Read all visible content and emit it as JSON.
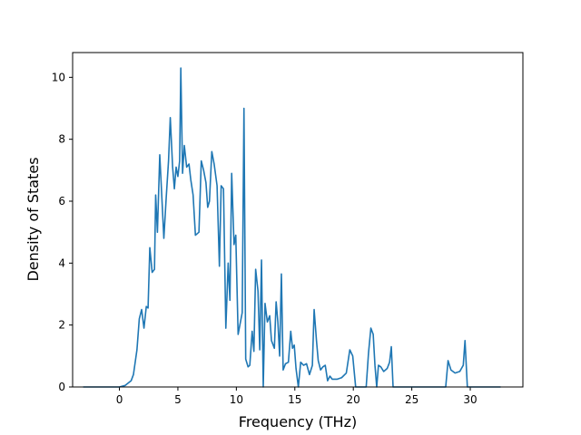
{
  "chart_data": {
    "type": "line",
    "title": "",
    "xlabel": "Frequency (THz)",
    "ylabel": "Density of States",
    "xlim": [
      -4.0,
      34.5
    ],
    "ylim": [
      0,
      10.8
    ],
    "xticks": [
      0,
      5,
      10,
      15,
      20,
      25,
      30
    ],
    "yticks": [
      0,
      2,
      4,
      6,
      8,
      10
    ],
    "grid": false,
    "legend": "none",
    "series": [
      {
        "color": "#1f77b4",
        "points": [
          [
            -3.1,
            0.0
          ],
          [
            0.0,
            0.0
          ],
          [
            0.5,
            0.05
          ],
          [
            1.0,
            0.2
          ],
          [
            1.2,
            0.4
          ],
          [
            1.5,
            1.2
          ],
          [
            1.7,
            2.2
          ],
          [
            1.9,
            2.5
          ],
          [
            2.1,
            1.9
          ],
          [
            2.3,
            2.6
          ],
          [
            2.45,
            2.55
          ],
          [
            2.6,
            4.5
          ],
          [
            2.8,
            3.7
          ],
          [
            3.0,
            3.8
          ],
          [
            3.1,
            6.2
          ],
          [
            3.25,
            5.0
          ],
          [
            3.45,
            7.5
          ],
          [
            3.8,
            4.8
          ],
          [
            4.0,
            6.1
          ],
          [
            4.2,
            7.3
          ],
          [
            4.35,
            8.7
          ],
          [
            4.55,
            7.1
          ],
          [
            4.7,
            6.4
          ],
          [
            4.85,
            7.1
          ],
          [
            5.0,
            6.8
          ],
          [
            5.15,
            7.3
          ],
          [
            5.25,
            10.3
          ],
          [
            5.4,
            6.9
          ],
          [
            5.55,
            7.8
          ],
          [
            5.75,
            7.1
          ],
          [
            5.95,
            7.2
          ],
          [
            6.1,
            6.7
          ],
          [
            6.3,
            6.2
          ],
          [
            6.5,
            4.9
          ],
          [
            6.8,
            5.0
          ],
          [
            7.0,
            7.3
          ],
          [
            7.2,
            7.0
          ],
          [
            7.4,
            6.6
          ],
          [
            7.55,
            5.8
          ],
          [
            7.7,
            6.0
          ],
          [
            7.9,
            7.6
          ],
          [
            8.1,
            7.2
          ],
          [
            8.35,
            6.5
          ],
          [
            8.55,
            3.9
          ],
          [
            8.7,
            6.5
          ],
          [
            8.9,
            6.4
          ],
          [
            9.1,
            1.9
          ],
          [
            9.3,
            4.0
          ],
          [
            9.45,
            2.8
          ],
          [
            9.6,
            6.9
          ],
          [
            9.8,
            4.6
          ],
          [
            9.95,
            4.9
          ],
          [
            10.15,
            1.7
          ],
          [
            10.5,
            2.4
          ],
          [
            10.65,
            9.0
          ],
          [
            10.8,
            0.9
          ],
          [
            11.0,
            0.65
          ],
          [
            11.15,
            0.7
          ],
          [
            11.35,
            1.8
          ],
          [
            11.5,
            1.15
          ],
          [
            11.65,
            3.8
          ],
          [
            11.85,
            3.1
          ],
          [
            12.0,
            1.2
          ],
          [
            12.15,
            4.1
          ],
          [
            12.3,
            0.0
          ],
          [
            12.45,
            2.7
          ],
          [
            12.65,
            2.1
          ],
          [
            12.85,
            2.3
          ],
          [
            13.0,
            1.5
          ],
          [
            13.25,
            1.25
          ],
          [
            13.4,
            2.75
          ],
          [
            13.55,
            2.1
          ],
          [
            13.7,
            1.0
          ],
          [
            13.85,
            3.65
          ],
          [
            14.0,
            0.55
          ],
          [
            14.2,
            0.75
          ],
          [
            14.45,
            0.8
          ],
          [
            14.65,
            1.8
          ],
          [
            14.8,
            1.25
          ],
          [
            14.95,
            1.35
          ],
          [
            15.1,
            0.6
          ],
          [
            15.3,
            0.0
          ],
          [
            15.5,
            0.8
          ],
          [
            15.75,
            0.7
          ],
          [
            16.0,
            0.75
          ],
          [
            16.25,
            0.4
          ],
          [
            16.5,
            0.7
          ],
          [
            16.65,
            2.5
          ],
          [
            16.85,
            1.5
          ],
          [
            17.0,
            0.85
          ],
          [
            17.2,
            0.55
          ],
          [
            17.4,
            0.65
          ],
          [
            17.6,
            0.7
          ],
          [
            17.8,
            0.2
          ],
          [
            18.0,
            0.35
          ],
          [
            18.2,
            0.25
          ],
          [
            18.6,
            0.25
          ],
          [
            19.0,
            0.3
          ],
          [
            19.4,
            0.45
          ],
          [
            19.7,
            1.2
          ],
          [
            19.95,
            1.0
          ],
          [
            20.2,
            0.0
          ],
          [
            21.1,
            0.0
          ],
          [
            21.3,
            1.1
          ],
          [
            21.5,
            1.9
          ],
          [
            21.7,
            1.7
          ],
          [
            21.85,
            0.7
          ],
          [
            22.0,
            0.0
          ],
          [
            22.15,
            0.7
          ],
          [
            22.35,
            0.65
          ],
          [
            22.6,
            0.5
          ],
          [
            22.9,
            0.6
          ],
          [
            23.1,
            0.8
          ],
          [
            23.25,
            1.3
          ],
          [
            23.4,
            0.0
          ],
          [
            27.9,
            0.0
          ],
          [
            28.1,
            0.85
          ],
          [
            28.35,
            0.55
          ],
          [
            28.7,
            0.45
          ],
          [
            29.1,
            0.5
          ],
          [
            29.4,
            0.7
          ],
          [
            29.55,
            1.5
          ],
          [
            29.75,
            0.0
          ],
          [
            32.6,
            0.0
          ]
        ]
      }
    ]
  }
}
